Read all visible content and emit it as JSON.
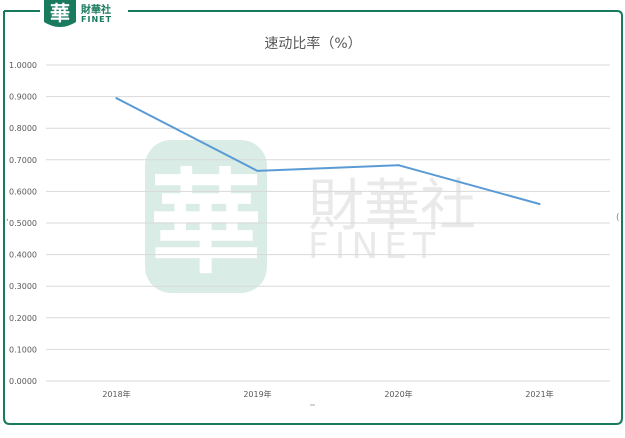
{
  "brand": {
    "logo_glyph": "華",
    "name_cn": "財華社",
    "name_en": "FINET"
  },
  "watermark": {
    "glyph": "華",
    "name_cn": "財華社",
    "name_en": "FINET"
  },
  "chart_data": {
    "type": "line",
    "title": "速动比率（%）",
    "categories": [
      "2018年",
      "2019年",
      "2020年",
      "2021年"
    ],
    "series": [
      {
        "values": [
          0.895,
          0.665,
          0.683,
          0.56
        ]
      }
    ],
    "ylim": [
      0,
      1
    ],
    "yticks": [
      "0.0000",
      "0.1000",
      "0.2000",
      "0.3000",
      "0.4000",
      "0.5000",
      "0.6000",
      "0.7000",
      "0.8000",
      "0.9000",
      "1.0000"
    ],
    "grid": true,
    "legend": "none",
    "colors": {
      "line": "#5b9bd5",
      "grid": "#d9d9d9",
      "frame": "#1a7a5e",
      "brand": "#1a7a5e",
      "watermark": "#3a9a7a"
    }
  }
}
